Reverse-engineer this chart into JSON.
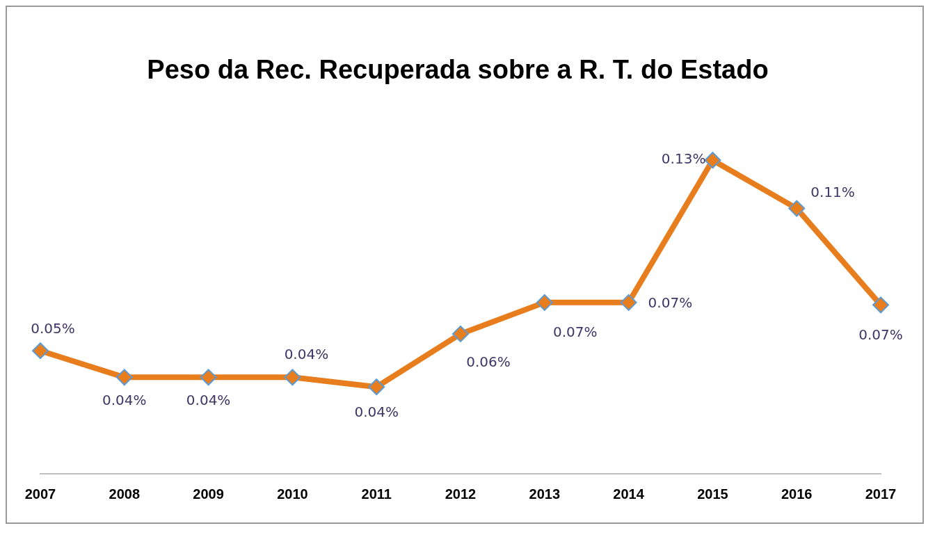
{
  "chart_data": {
    "type": "line",
    "title": "Peso da Rec. Recuperada sobre a R. T. do Estado",
    "categories": [
      "2007",
      "2008",
      "2009",
      "2010",
      "2011",
      "2012",
      "2013",
      "2014",
      "2015",
      "2016",
      "2017"
    ],
    "series": [
      {
        "color": "#e87d1e",
        "values": [
          0.051,
          0.04,
          0.04,
          0.04,
          0.036,
          0.058,
          0.071,
          0.071,
          0.13,
          0.11,
          0.07
        ],
        "value_labels": [
          "0.05%",
          "0.04%",
          "0.04%",
          "0.04%",
          "0.04%",
          "0.06%",
          "0.07%",
          "0.07%",
          "0.13%",
          "0.11%",
          "0.07%"
        ]
      }
    ],
    "tick_labels": "x",
    "grid": false,
    "legend": false,
    "marker": "diamond",
    "line_style": "solid"
  }
}
